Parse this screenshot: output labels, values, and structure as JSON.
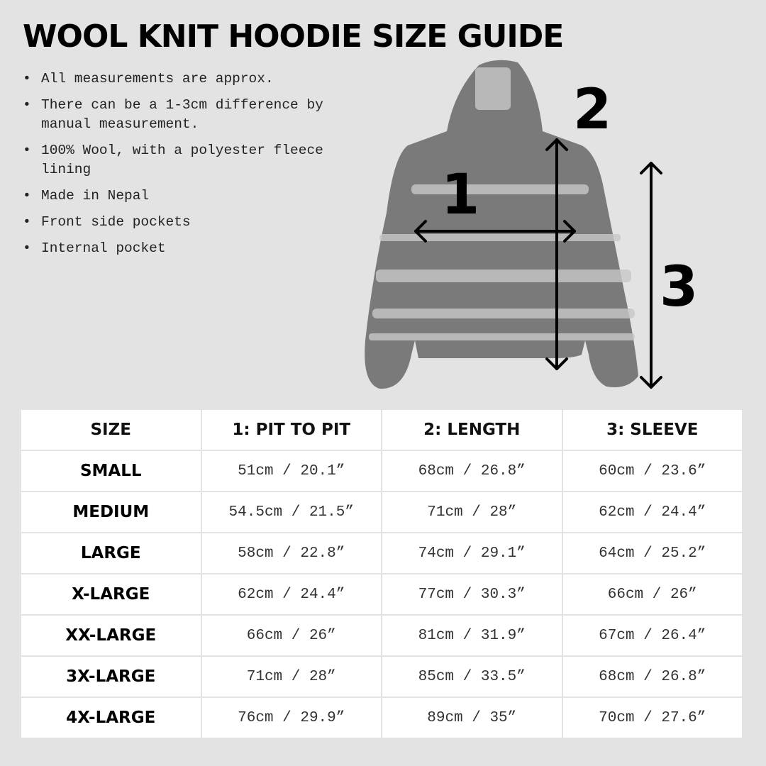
{
  "title": "WOOL KNIT HOODIE SIZE GUIDE",
  "notes": [
    "All measurements are approx.",
    "There can be a 1-3cm difference by manual measurement.",
    "100% Wool, with a polyester fleece lining",
    "Made in Nepal",
    "Front side pockets",
    "Internal pocket"
  ],
  "figure": {
    "labels": [
      "1",
      "2",
      "3"
    ],
    "garment_color": "#7a7a7a"
  },
  "table": {
    "headers": [
      "SIZE",
      "1: PIT TO PIT",
      "2: LENGTH",
      "3: SLEEVE"
    ],
    "rows": [
      [
        "SMALL",
        "51cm / 20.1”",
        "68cm / 26.8”",
        "60cm / 23.6”"
      ],
      [
        "MEDIUM",
        "54.5cm / 21.5”",
        "71cm / 28”",
        "62cm / 24.4”"
      ],
      [
        "LARGE",
        "58cm / 22.8”",
        "74cm / 29.1”",
        "64cm / 25.2”"
      ],
      [
        "X-LARGE",
        "62cm / 24.4”",
        "77cm / 30.3”",
        "66cm / 26”"
      ],
      [
        "XX-LARGE",
        "66cm / 26”",
        "81cm / 31.9”",
        "67cm / 26.4”"
      ],
      [
        "3X-LARGE",
        "71cm / 28”",
        "85cm / 33.5”",
        "68cm / 26.8”"
      ],
      [
        "4X-LARGE",
        "76cm / 29.9”",
        "89cm / 35”",
        "70cm / 27.6”"
      ]
    ]
  }
}
